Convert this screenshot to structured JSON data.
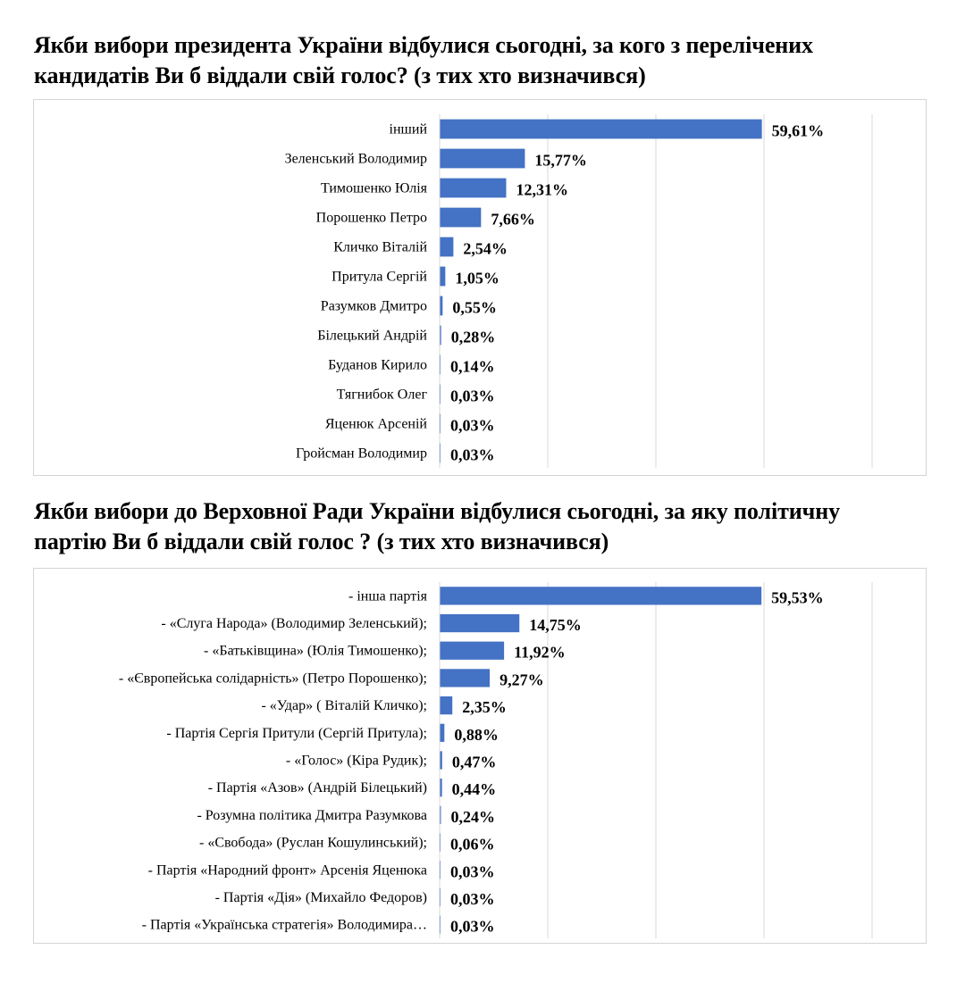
{
  "charts": [
    {
      "title_lines": [
        "Якби вибори президента України відбулися сьогодні, за кого з перелічених",
        "кандидатів Ви б віддали свій голос? (з тих хто визначився)"
      ]
    },
    {
      "title_lines": [
        "Якби вибори до Верховної Ради України відбулися сьогодні, за яку політичну",
        "партію Ви б віддали свій голос ? (з тих хто визначився)"
      ]
    }
  ],
  "chart_data": [
    {
      "type": "bar",
      "orientation": "horizontal",
      "title": "Якби вибори президента України відбулися сьогодні, за кого з перелічених кандидатів Ви б віддали свій голос? (з тих хто визначився)",
      "categories": [
        "інший",
        "Зеленський Володимир",
        "Тимошенко Юлія",
        "Порошенко Петро",
        "Кличко Віталій",
        "Притула Сергій",
        "Разумков Дмитро",
        "Білецький Андрій",
        "Буданов Кирило",
        "Тягнибок Олег",
        "Яценюк Арсеній",
        "Гройсман Володимир"
      ],
      "values": [
        59.61,
        15.77,
        12.31,
        7.66,
        2.54,
        1.05,
        0.55,
        0.28,
        0.14,
        0.03,
        0.03,
        0.03
      ],
      "value_labels": [
        "59,61%",
        "15,77%",
        "12,31%",
        "7,66%",
        "2,54%",
        "1,05%",
        "0,55%",
        "0,28%",
        "0,14%",
        "0,03%",
        "0,03%",
        "0,03%"
      ],
      "xlim": [
        0,
        80
      ],
      "grid": true,
      "bar_color": "#4472c4"
    },
    {
      "type": "bar",
      "orientation": "horizontal",
      "title": "Якби вибори до Верховної Ради України відбулися сьогодні, за яку політичну партію Ви б віддали свій голос ? (з тих хто визначився)",
      "categories": [
        "- інша партія",
        "- «Слуга Народа» (Володимир Зеленський);",
        "- «Батьківщина» (Юлія Тимошенко);",
        "- «Європейська солідарність» (Петро Порошенко);",
        "- «Удар» ( Віталій Кличко);",
        "- Партія Сергія Притули (Сергій Притула);",
        "- «Голос» (Кіра Рудик);",
        "- Партія «Азов» (Андрій Білецький)",
        "- Розумна політика Дмитра Разумкова",
        "- «Свобода» (Руслан Кошулинський);",
        "- Партія «Народний фронт» Арсенія Яценюка",
        "- Партія «Дія» (Михайло Федоров)",
        "- Партія «Українська стратегія» Володимира…"
      ],
      "values": [
        59.53,
        14.75,
        11.92,
        9.27,
        2.35,
        0.88,
        0.47,
        0.44,
        0.24,
        0.06,
        0.03,
        0.03,
        0.03
      ],
      "value_labels": [
        "59,53%",
        "14,75%",
        "11,92%",
        "9,27%",
        "2,35%",
        "0,88%",
        "0,47%",
        "0,44%",
        "0,24%",
        "0,06%",
        "0,03%",
        "0,03%",
        "0,03%"
      ],
      "xlim": [
        0,
        80
      ],
      "grid": true,
      "bar_color": "#4472c4"
    }
  ]
}
